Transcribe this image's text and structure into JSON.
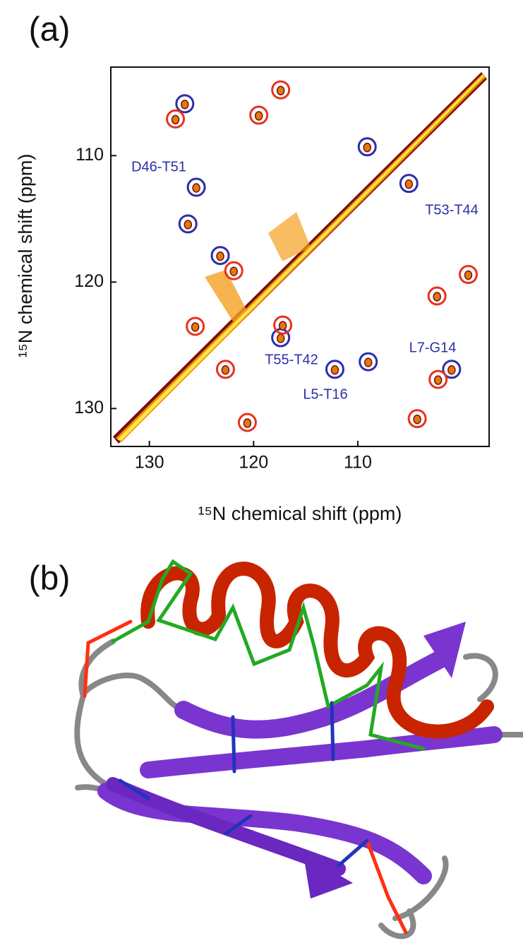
{
  "panel_labels": [
    "(a)",
    "(b)"
  ],
  "chart_data": {
    "type": "scatter",
    "xlabel": "¹⁵N chemical shift (ppm)",
    "ylabel": "¹⁵N chemical shift (ppm)",
    "xlim": [
      133.7,
      97.4
    ],
    "ylim": [
      133,
      103
    ],
    "xticks": [
      130,
      120,
      110
    ],
    "yticks": [
      110,
      120,
      130
    ],
    "series": [
      {
        "color": "#2b2fa8",
        "x": [
          126.6,
          125.5,
          126.3,
          123.2,
          117.4,
          109.1,
          105.1,
          112.2,
          109.0,
          101.0
        ],
        "values": [
          105.9,
          112.5,
          115.4,
          117.9,
          124.4,
          109.3,
          112.2,
          126.9,
          126.3,
          126.9
        ]
      },
      {
        "color": "#e8321e",
        "x": [
          127.5,
          117.4,
          119.5,
          121.9,
          125.6,
          117.2,
          122.7,
          120.6,
          99.4,
          102.4,
          102.3,
          104.3
        ],
        "values": [
          107.1,
          104.8,
          106.8,
          119.1,
          123.5,
          123.4,
          126.9,
          131.1,
          119.4,
          121.1,
          127.7,
          130.8
        ]
      }
    ],
    "annotation_color": "#2b2fa8",
    "annotations": [
      "D46-T51",
      "T53-T44",
      "T55-T42",
      "L5-T16",
      "L7-G14"
    ]
  }
}
